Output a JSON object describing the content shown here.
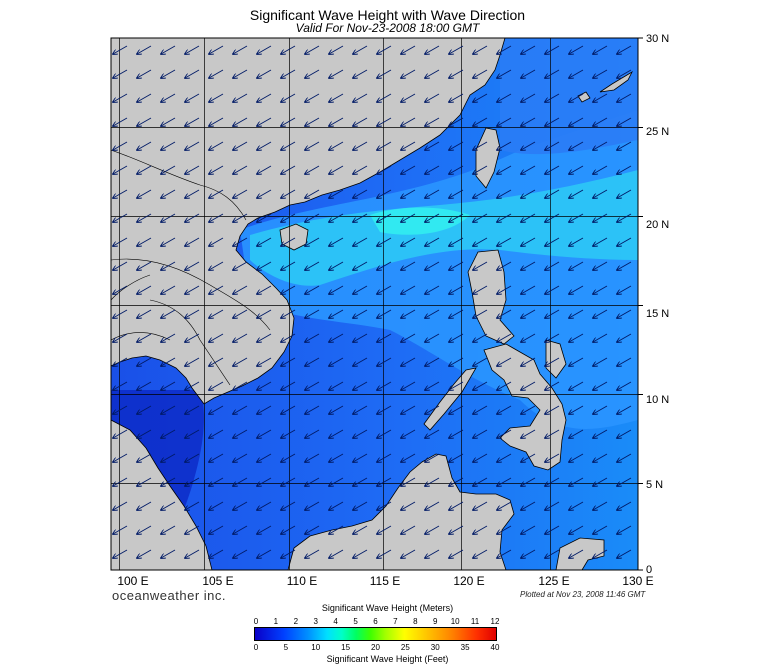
{
  "title": "Significant Wave Height with Wave Direction",
  "subtitle": "Valid For Nov-23-2008 18:00 GMT",
  "lon_labels": [
    "100 E",
    "105 E",
    "110 E",
    "115 E",
    "120 E",
    "125 E",
    "130 E"
  ],
  "lat_labels": [
    "30 N",
    "25 N",
    "20 N",
    "15 N",
    "10 N",
    "5 N",
    "0"
  ],
  "brand": "oceanweather inc.",
  "plotted": "Plotted at Nov 23, 2008 11:46 GMT",
  "colorbar": {
    "title_meters": "Significant Wave Height (Meters)",
    "title_feet": "Significant Wave Height (Feet)",
    "meters_ticks": [
      "0",
      "1",
      "2",
      "3",
      "4",
      "5",
      "6",
      "7",
      "8",
      "9",
      "10",
      "11",
      "12"
    ],
    "feet_ticks": [
      "0",
      "5",
      "10",
      "15",
      "20",
      "25",
      "30",
      "35",
      "40"
    ],
    "range_m": [
      0,
      12
    ],
    "range_ft": [
      0,
      40
    ]
  },
  "map_extent": {
    "lon": [
      99,
      130
    ],
    "lat": [
      0,
      30
    ]
  },
  "colors": {
    "land": "#c8c8c8",
    "sea_low": "#1e5cf0",
    "sea_mid": "#1e96ff",
    "sea_high": "#22ddf8",
    "grid": "#000000"
  },
  "wave_direction": "arrows from the NE (northeast monsoon)"
}
